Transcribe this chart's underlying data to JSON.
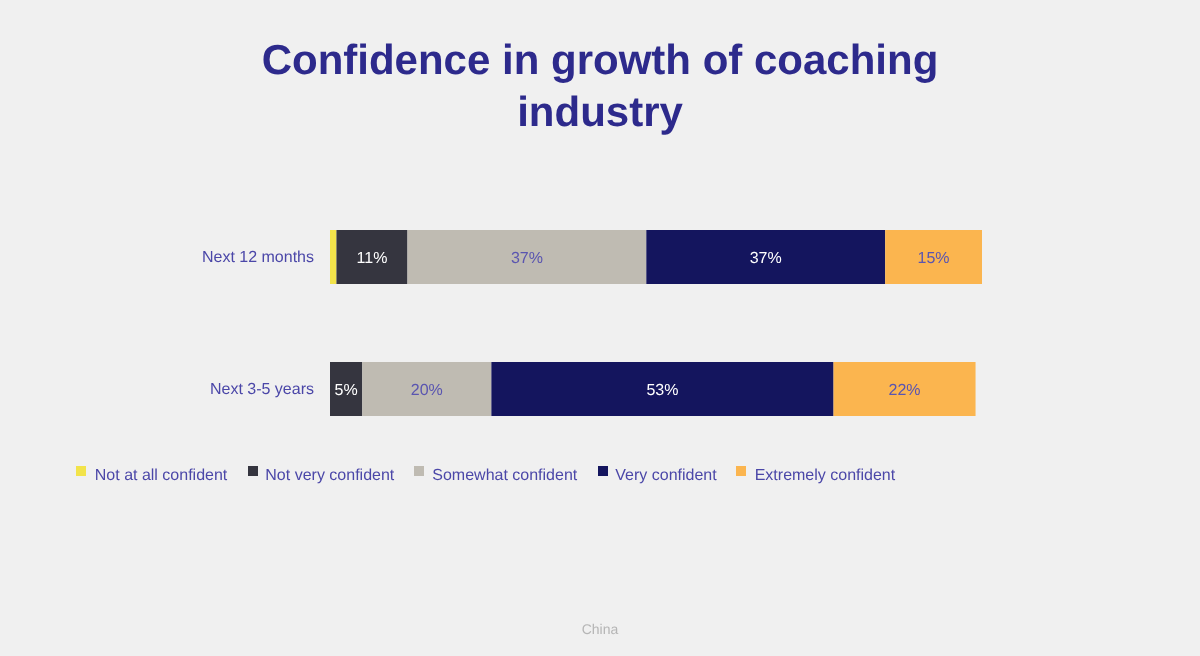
{
  "chart_data": {
    "type": "bar",
    "orientation": "horizontal",
    "stacked": true,
    "title": "Confidence in growth of coaching industry",
    "categories": [
      "Next 12 months",
      "Next 3-5 years"
    ],
    "series": [
      {
        "name": "Not at all confident",
        "color": "#f2e34a",
        "values": [
          1,
          0
        ],
        "value_labels": [
          null,
          null
        ]
      },
      {
        "name": "Not very confident",
        "color": "#35353f",
        "values": [
          11,
          5
        ],
        "value_labels": [
          "11%",
          "5%"
        ]
      },
      {
        "name": "Somewhat confident",
        "color": "#bfbbb2",
        "values": [
          37,
          20
        ],
        "value_labels": [
          "37%",
          "20%"
        ]
      },
      {
        "name": "Very confident",
        "color": "#14155e",
        "values": [
          37,
          53
        ],
        "value_labels": [
          "37%",
          "53%"
        ]
      },
      {
        "name": "Extremely confident",
        "color": "#fbb54f",
        "values": [
          15,
          22
        ],
        "value_labels": [
          "15%",
          "22%"
        ]
      }
    ],
    "legend": "bottom",
    "annotations": [
      "China"
    ]
  }
}
